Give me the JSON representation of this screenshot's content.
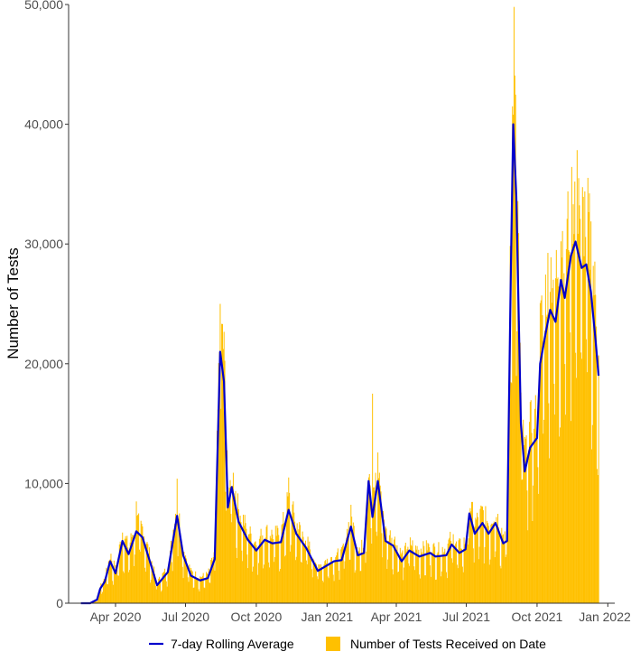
{
  "chart_data": {
    "type": "bar",
    "title": "",
    "ylabel": "Number of Tests",
    "xlabel": "",
    "x_start_date": "2020-02-16",
    "x_end_date": "2021-12-20",
    "xlim": [
      "2020-01-31",
      "2022-01-10"
    ],
    "ylim": [
      0,
      50000
    ],
    "y_ticks": [
      0,
      10000,
      20000,
      30000,
      40000,
      50000
    ],
    "y_tick_labels": [
      "0",
      "10,000",
      "20,000",
      "30,000",
      "40,000",
      "50,000"
    ],
    "x_ticks": [
      "2020-04-01",
      "2020-07-01",
      "2020-10-01",
      "2021-01-01",
      "2021-04-01",
      "2021-07-01",
      "2021-10-01",
      "2022-01-01"
    ],
    "x_tick_labels": [
      "Apr 2020",
      "Jul 2020",
      "Oct 2020",
      "Jan 2021",
      "Apr 2021",
      "Jul 2021",
      "Oct 2021",
      "Jan 2022"
    ],
    "grid": false,
    "legend_position": "bottom",
    "series": [
      {
        "name": "7-day Rolling Average",
        "kind": "line",
        "color": "#0000CC",
        "points": [
          [
            "2020-02-16",
            0
          ],
          [
            "2020-02-28",
            0
          ],
          [
            "2020-03-08",
            300
          ],
          [
            "2020-03-12",
            1200
          ],
          [
            "2020-03-18",
            1800
          ],
          [
            "2020-03-25",
            3500
          ],
          [
            "2020-04-01",
            2500
          ],
          [
            "2020-04-10",
            5200
          ],
          [
            "2020-04-18",
            4100
          ],
          [
            "2020-04-28",
            6000
          ],
          [
            "2020-05-06",
            5500
          ],
          [
            "2020-05-18",
            3000
          ],
          [
            "2020-05-25",
            1500
          ],
          [
            "2020-06-08",
            2600
          ],
          [
            "2020-06-20",
            7300
          ],
          [
            "2020-06-28",
            4000
          ],
          [
            "2020-07-08",
            2300
          ],
          [
            "2020-07-20",
            1900
          ],
          [
            "2020-07-30",
            2100
          ],
          [
            "2020-08-08",
            3700
          ],
          [
            "2020-08-15",
            21000
          ],
          [
            "2020-08-20",
            18500
          ],
          [
            "2020-08-25",
            8000
          ],
          [
            "2020-08-30",
            9700
          ],
          [
            "2020-09-08",
            6800
          ],
          [
            "2020-09-20",
            5300
          ],
          [
            "2020-10-01",
            4400
          ],
          [
            "2020-10-12",
            5300
          ],
          [
            "2020-10-22",
            5000
          ],
          [
            "2020-11-02",
            5100
          ],
          [
            "2020-11-12",
            7800
          ],
          [
            "2020-11-22",
            5800
          ],
          [
            "2020-12-05",
            4600
          ],
          [
            "2020-12-20",
            2700
          ],
          [
            "2021-01-10",
            3500
          ],
          [
            "2021-01-20",
            3600
          ],
          [
            "2021-02-01",
            6400
          ],
          [
            "2021-02-10",
            4000
          ],
          [
            "2021-02-18",
            4200
          ],
          [
            "2021-02-24",
            10200
          ],
          [
            "2021-03-01",
            7200
          ],
          [
            "2021-03-08",
            10200
          ],
          [
            "2021-03-18",
            5200
          ],
          [
            "2021-03-28",
            4800
          ],
          [
            "2021-04-08",
            3500
          ],
          [
            "2021-04-18",
            4400
          ],
          [
            "2021-05-01",
            3900
          ],
          [
            "2021-05-15",
            4200
          ],
          [
            "2021-05-22",
            3900
          ],
          [
            "2021-06-05",
            4000
          ],
          [
            "2021-06-12",
            4900
          ],
          [
            "2021-06-22",
            4200
          ],
          [
            "2021-06-30",
            4500
          ],
          [
            "2021-07-05",
            7500
          ],
          [
            "2021-07-12",
            5800
          ],
          [
            "2021-07-22",
            6700
          ],
          [
            "2021-07-30",
            5800
          ],
          [
            "2021-08-08",
            6700
          ],
          [
            "2021-08-18",
            5000
          ],
          [
            "2021-08-23",
            5200
          ],
          [
            "2021-08-28",
            28000
          ],
          [
            "2021-08-31",
            40000
          ],
          [
            "2021-09-04",
            34000
          ],
          [
            "2021-09-10",
            15000
          ],
          [
            "2021-09-15",
            11000
          ],
          [
            "2021-09-22",
            13000
          ],
          [
            "2021-10-01",
            13800
          ],
          [
            "2021-10-05",
            20000
          ],
          [
            "2021-10-12",
            22500
          ],
          [
            "2021-10-18",
            24500
          ],
          [
            "2021-10-25",
            23500
          ],
          [
            "2021-11-01",
            27000
          ],
          [
            "2021-11-06",
            25500
          ],
          [
            "2021-11-14",
            29000
          ],
          [
            "2021-11-20",
            30200
          ],
          [
            "2021-11-28",
            28000
          ],
          [
            "2021-12-04",
            28300
          ],
          [
            "2021-12-10",
            26000
          ],
          [
            "2021-12-16",
            22000
          ],
          [
            "2021-12-20",
            19000
          ]
        ]
      },
      {
        "name": "Number of Tests Received on Date",
        "kind": "bars",
        "color": "#FFC000",
        "daily_pattern": "weekday values 1.0-1.3x the rolling average, weekend values 0.5-0.8x",
        "peak_values": [
          [
            "2020-04-28",
            8500
          ],
          [
            "2020-06-20",
            10400
          ],
          [
            "2020-08-15",
            25000
          ],
          [
            "2020-11-12",
            10500
          ],
          [
            "2021-03-01",
            17500
          ],
          [
            "2021-08-30",
            41500
          ],
          [
            "2021-09-01",
            49800
          ],
          [
            "2021-11-24",
            35500
          ]
        ]
      }
    ]
  }
}
